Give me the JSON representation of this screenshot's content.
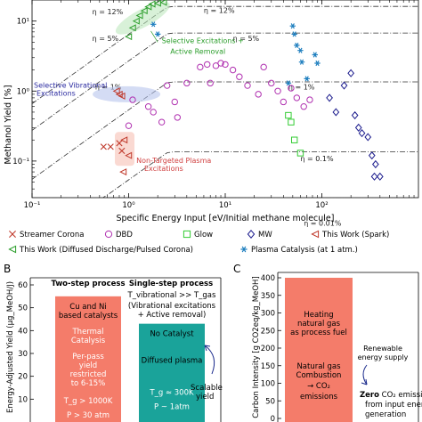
{
  "chart_data": [
    {
      "type": "scatter",
      "xlabel": "Specific Energy Input [eV/Initial methane molecule]",
      "ylabel": "Methanol Yield [%]",
      "xscale": "log",
      "yscale": "log",
      "xlim": [
        0.1,
        1000
      ],
      "ylim": [
        0.03,
        20
      ],
      "x_ticks": [
        "10⁻¹",
        "10⁰",
        "10¹",
        "10²"
      ],
      "y_ticks": [
        "10⁻¹",
        "10⁰",
        "10¹"
      ],
      "efficiency_lines": [
        {
          "label": "η = 12%",
          "k": 12
        },
        {
          "label": "η = 5%",
          "k": 5
        },
        {
          "label": "η = 1%",
          "k": 1
        },
        {
          "label": "η = 0.1%",
          "k": 0.1
        },
        {
          "label": "η = 0.01%",
          "k": 0.01
        }
      ],
      "annotations": [
        {
          "text": "Selective Excitations + Active Removal",
          "color": "#2a9d2a"
        },
        {
          "text": "Selective Vibrational Excitations",
          "color": "#2a2aa0"
        },
        {
          "text": "Non-Targeted Plasma Excitations",
          "color": "#d04040"
        }
      ],
      "series": [
        {
          "name": "Streamer Corona",
          "marker": "x",
          "color": "#c0392b",
          "points": [
            [
              0.55,
              0.16
            ],
            [
              0.65,
              0.16
            ],
            [
              0.8,
              0.18
            ],
            [
              0.85,
              0.14
            ]
          ]
        },
        {
          "name": "DBD",
          "marker": "circle",
          "color": "#b030b0",
          "points": [
            [
              1.0,
              0.32
            ],
            [
              1.6,
              0.6
            ],
            [
              2.5,
              1.2
            ],
            [
              3.0,
              0.7
            ],
            [
              4.0,
              1.3
            ],
            [
              5.5,
              2.2
            ],
            [
              6.5,
              2.4
            ],
            [
              7.0,
              1.3
            ],
            [
              8,
              2.3
            ],
            [
              9,
              2.5
            ],
            [
              10,
              2.4
            ],
            [
              12,
              2.0
            ],
            [
              14,
              1.6
            ],
            [
              17,
              1.2
            ],
            [
              22,
              0.9
            ],
            [
              25,
              2.2
            ],
            [
              30,
              1.3
            ],
            [
              35,
              1.0
            ],
            [
              40,
              0.7
            ],
            [
              48,
              1.1
            ],
            [
              55,
              0.8
            ],
            [
              65,
              0.6
            ],
            [
              75,
              0.75
            ],
            [
              1.1,
              0.75
            ],
            [
              1.8,
              0.5
            ],
            [
              3.2,
              0.42
            ],
            [
              2.2,
              0.36
            ]
          ]
        },
        {
          "name": "Glow",
          "marker": "square",
          "color": "#33cc33",
          "points": [
            [
              45,
              0.45
            ],
            [
              48,
              0.36
            ],
            [
              52,
              0.2
            ],
            [
              60,
              0.13
            ]
          ]
        },
        {
          "name": "MW",
          "marker": "diamond",
          "color": "#1a1a8c",
          "points": [
            [
              120,
              0.8
            ],
            [
              140,
              0.5
            ],
            [
              170,
              1.2
            ],
            [
              200,
              1.8
            ],
            [
              220,
              0.45
            ],
            [
              240,
              0.3
            ],
            [
              260,
              0.25
            ],
            [
              300,
              0.22
            ],
            [
              330,
              0.12
            ],
            [
              360,
              0.09
            ],
            [
              350,
              0.06
            ],
            [
              400,
              0.06
            ]
          ]
        },
        {
          "name": "This Work (Spark)",
          "marker": "triangle-left",
          "color": "#c0392b",
          "points": [
            [
              0.9,
              0.2
            ],
            [
              1.0,
              0.12
            ],
            [
              0.88,
              0.07
            ],
            [
              0.75,
              1.0
            ],
            [
              0.8,
              0.9
            ],
            [
              0.85,
              0.85
            ]
          ]
        },
        {
          "name": "This Work (Diffused Discharge/Pulsed Corona)",
          "marker": "triangle-left",
          "color": "#2a9d2a",
          "points": [
            [
              1.0,
              6.0
            ],
            [
              1.1,
              8.0
            ],
            [
              1.2,
              10.0
            ],
            [
              1.3,
              12.0
            ],
            [
              1.45,
              14.0
            ],
            [
              1.6,
              16.0
            ],
            [
              1.75,
              17.5
            ],
            [
              2.0,
              18.0
            ],
            [
              2.3,
              18.5
            ]
          ]
        },
        {
          "name": "Plasma Catalysis (at 1 atm.)",
          "marker": "star",
          "color": "#1f7fbf",
          "points": [
            [
              1.8,
              9.0
            ],
            [
              2.0,
              6.5
            ],
            [
              50,
              8.5
            ],
            [
              52,
              6.5
            ],
            [
              55,
              4.5
            ],
            [
              60,
              3.8
            ],
            [
              62,
              2.6
            ],
            [
              70,
              1.5
            ],
            [
              85,
              3.3
            ],
            [
              90,
              2.5
            ],
            [
              45,
              1.3
            ]
          ]
        }
      ],
      "legend_position": "bottom"
    },
    {
      "type": "bar",
      "panel": "B",
      "ylabel": "Energy-Adjusted Yield (μg_MeOH/J)",
      "process_labels": [
        "Two-step process",
        "Single-step process"
      ],
      "ylim": [
        0,
        60
      ],
      "y_ticks": [
        "10",
        "20",
        "30",
        "40",
        "50",
        "60"
      ],
      "bars": [
        {
          "name": "Two-step",
          "value": 55,
          "color": "#f47c6a",
          "texts": [
            "Cu and Ni based catalysts",
            "Thermal Catalysis",
            "Per-pass yield restricted to 6-15%",
            "T_g > 1000K",
            "P > 30 atm"
          ]
        },
        {
          "name": "Single-step",
          "value": 43,
          "color": "#1aa39a",
          "texts": [
            "No Catalyst",
            "Diffused plasma",
            "T_g ≈ 300K",
            "P ~ 1atm"
          ]
        }
      ],
      "single_step_header": "T_vibrational >> T_gas",
      "single_step_note": "(Vibrational excitations + Active removal)",
      "scalable_note": "Scalable yield"
    },
    {
      "type": "bar",
      "panel": "C",
      "ylabel": "Carbon Intensity [g CO2eq/kg_MeOH]",
      "ylim": [
        0,
        400
      ],
      "y_ticks": [
        "0",
        "50",
        "100",
        "150",
        "200",
        "250",
        "300",
        "350",
        "400"
      ],
      "bars": [
        {
          "name": "Conventional",
          "value": 400,
          "color": "#f47c6a",
          "texts": [
            "Heating natural gas as process fuel",
            "Natural gas Combustion → CO2 emissions"
          ]
        }
      ],
      "side_notes": [
        "Renewable energy supply",
        "Zero CO2 emissions from input energy generation"
      ]
    }
  ],
  "panel_labels": {
    "b": "B",
    "c": "C"
  }
}
